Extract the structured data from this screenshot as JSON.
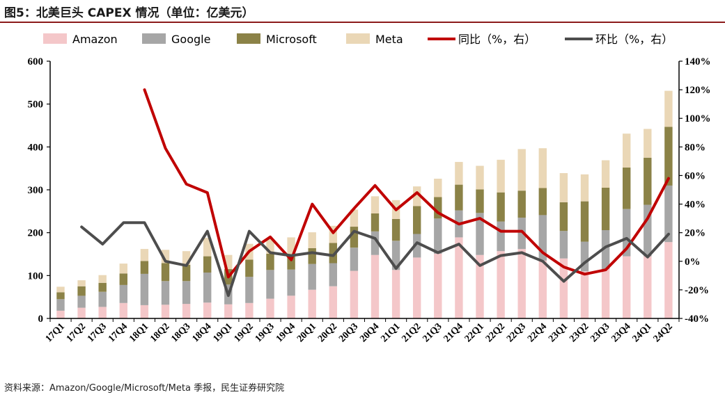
{
  "page": {
    "title": "图5：北美巨头 CAPEX 情况（单位：亿美元）",
    "source": "资料来源：Amazon/Google/Microsoft/Meta 季报，民生证券研究院"
  },
  "chart_data": {
    "type": "bar",
    "stacked": true,
    "categories": [
      "17Q1",
      "17Q2",
      "17Q3",
      "17Q4",
      "18Q1",
      "18Q2",
      "18Q3",
      "18Q4",
      "19Q1",
      "19Q2",
      "19Q3",
      "19Q4",
      "20Q1",
      "20Q2",
      "20Q3",
      "20Q4",
      "21Q1",
      "21Q2",
      "21Q3",
      "21Q4",
      "22Q1",
      "22Q2",
      "22Q3",
      "22Q4",
      "23Q1",
      "23Q2",
      "23Q3",
      "23Q4",
      "24Q1",
      "24Q2"
    ],
    "series": [
      {
        "name": "Amazon",
        "type": "bar",
        "axis": "left",
        "color": "#f4c7c9",
        "values": [
          18,
          25,
          27,
          36,
          31,
          32,
          34,
          37,
          33,
          36,
          46,
          53,
          67,
          75,
          111,
          148,
          113,
          142,
          151,
          189,
          148,
          157,
          162,
          135,
          140,
          110,
          115,
          145,
          145,
          178
        ]
      },
      {
        "name": "Google",
        "type": "bar",
        "axis": "left",
        "color": "#a6a6a6",
        "values": [
          27,
          28,
          35,
          42,
          73,
          55,
          53,
          70,
          46,
          61,
          67,
          61,
          60,
          54,
          54,
          55,
          68,
          55,
          82,
          63,
          98,
          69,
          73,
          106,
          64,
          69,
          91,
          110,
          120,
          132
        ]
      },
      {
        "name": "Microsoft",
        "type": "bar",
        "axis": "left",
        "color": "#8b8247",
        "values": [
          16,
          22,
          21,
          27,
          30,
          42,
          38,
          38,
          36,
          40,
          38,
          35,
          37,
          47,
          49,
          42,
          51,
          65,
          50,
          60,
          55,
          68,
          63,
          63,
          67,
          94,
          99,
          97,
          110,
          137
        ]
      },
      {
        "name": "Meta",
        "type": "bar",
        "axis": "left",
        "color": "#ead7b6",
        "values": [
          13,
          14,
          18,
          23,
          28,
          31,
          32,
          43,
          33,
          37,
          34,
          40,
          37,
          40,
          40,
          40,
          44,
          46,
          43,
          53,
          55,
          76,
          97,
          93,
          68,
          63,
          64,
          79,
          67,
          84
        ]
      },
      {
        "name": "同比（%，右）",
        "type": "line",
        "axis": "right",
        "color": "#c00000",
        "values": [
          null,
          null,
          null,
          null,
          120,
          79,
          54,
          48,
          -11,
          7,
          17,
          1,
          40,
          20,
          37,
          53,
          36,
          48,
          34,
          26,
          30,
          21,
          21,
          6,
          -4,
          -9,
          -6,
          9,
          30,
          58
        ]
      },
      {
        "name": "环比（%，右）",
        "type": "line",
        "axis": "right",
        "color": "#4d4d4d",
        "values": [
          null,
          24,
          12,
          27,
          27,
          0,
          -3,
          21,
          -24,
          21,
          6,
          4,
          6,
          4,
          21,
          16,
          -5,
          13,
          6,
          12,
          -3,
          4,
          6,
          0,
          -14,
          -1,
          10,
          16,
          3,
          19
        ]
      }
    ],
    "y_left": {
      "min": 0,
      "max": 600,
      "ticks": [
        0,
        100,
        200,
        300,
        400,
        500,
        600
      ]
    },
    "y_right": {
      "min": -40,
      "max": 140,
      "ticks": [
        -40,
        -20,
        0,
        20,
        40,
        60,
        80,
        100,
        120,
        140
      ],
      "format": "%"
    },
    "legend_position": "top",
    "grid": false
  }
}
